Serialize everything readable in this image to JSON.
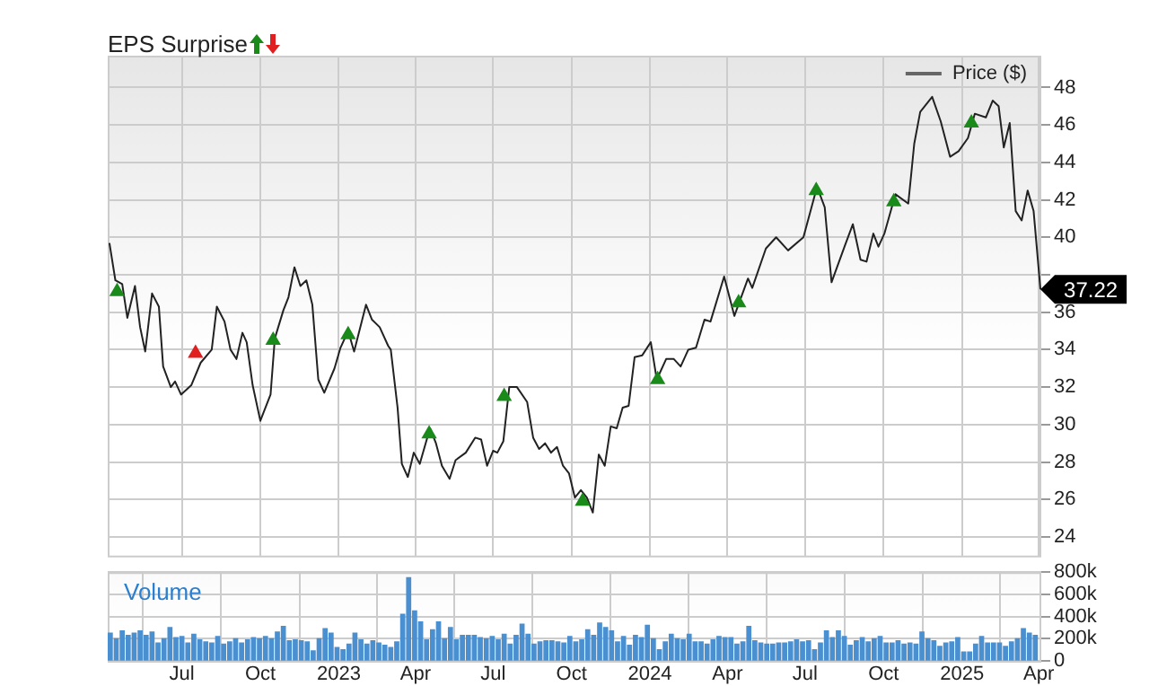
{
  "chart_data": [
    {
      "type": "line",
      "title": "EPS Surprise",
      "legend": "top right",
      "grid": true,
      "tick_labels": "y",
      "marker": "none",
      "xlim": [
        "2022-04-05",
        "2025-04-04"
      ],
      "xticks": [
        {
          "value": "2022-07-01",
          "label": null
        },
        {
          "value": "2022-10-01",
          "label": null
        },
        {
          "value": "2023-01-01",
          "label": null
        },
        {
          "value": "2023-04-01",
          "label": null
        },
        {
          "value": "2023-07-01",
          "label": null
        },
        {
          "value": "2023-10-01",
          "label": null
        },
        {
          "value": "2024-01-01",
          "label": null
        },
        {
          "value": "2024-04-01",
          "label": null
        },
        {
          "value": "2024-07-01",
          "label": null
        },
        {
          "value": "2024-10-01",
          "label": null
        },
        {
          "value": "2025-01-01",
          "label": null
        },
        {
          "value": "2025-04-01",
          "label": null
        }
      ],
      "ylim": [
        23,
        49.7
      ],
      "yticks": [
        24,
        26,
        28,
        30,
        32,
        34,
        36,
        {
          "value": 38,
          "label": null
        },
        40,
        42,
        44,
        46,
        48
      ],
      "annotations": [
        {
          "text": "37.22",
          "x": "2025-04-03",
          "y": 37.22
        }
      ],
      "series": [
        {
          "name": "Price ($)",
          "color": "#222222",
          "x": [
            "2022-04-07",
            "2022-04-14",
            "2022-04-22",
            "2022-04-28",
            "2022-05-07",
            "2022-05-13",
            "2022-05-19",
            "2022-05-27",
            "2022-06-04",
            "2022-06-09",
            "2022-06-18",
            "2022-06-23",
            "2022-06-30",
            "2022-07-12",
            "2022-07-23",
            "2022-08-05",
            "2022-08-11",
            "2022-08-20",
            "2022-08-27",
            "2022-09-03",
            "2022-09-10",
            "2022-09-15",
            "2022-09-22",
            "2022-10-01",
            "2022-10-13",
            "2022-10-18",
            "2022-10-28",
            "2022-11-03",
            "2022-11-10",
            "2022-11-17",
            "2022-11-24",
            "2022-12-01",
            "2022-12-08",
            "2022-12-15",
            "2022-12-27",
            "2023-01-03",
            "2023-01-12",
            "2023-01-19",
            "2023-02-02",
            "2023-02-09",
            "2023-02-18",
            "2023-02-28",
            "2023-03-03",
            "2023-03-11",
            "2023-03-16",
            "2023-03-23",
            "2023-03-30",
            "2023-04-06",
            "2023-04-18",
            "2023-04-25",
            "2023-05-02",
            "2023-05-11",
            "2023-05-18",
            "2023-05-30",
            "2023-06-10",
            "2023-06-17",
            "2023-06-24",
            "2023-07-01",
            "2023-07-06",
            "2023-07-13",
            "2023-07-20",
            "2023-07-29",
            "2023-08-10",
            "2023-08-17",
            "2023-08-24",
            "2023-08-31",
            "2023-09-07",
            "2023-09-14",
            "2023-09-21",
            "2023-09-28",
            "2023-10-05",
            "2023-10-12",
            "2023-10-19",
            "2023-10-26",
            "2023-11-02",
            "2023-11-09",
            "2023-11-16",
            "2023-11-23",
            "2023-11-30",
            "2023-12-07",
            "2023-12-14",
            "2023-12-23",
            "2024-01-02",
            "2024-01-09",
            "2024-01-20",
            "2024-01-29",
            "2024-02-06",
            "2024-02-15",
            "2024-02-24",
            "2024-03-05",
            "2024-03-12",
            "2024-03-28",
            "2024-04-09",
            "2024-04-25",
            "2024-04-30",
            "2024-05-16",
            "2024-05-28",
            "2024-06-11",
            "2024-06-29",
            "2024-07-15",
            "2024-07-24",
            "2024-08-01",
            "2024-08-17",
            "2024-08-26",
            "2024-09-04",
            "2024-09-11",
            "2024-09-19",
            "2024-09-25",
            "2024-10-02",
            "2024-10-15",
            "2024-10-30",
            "2024-11-06",
            "2024-11-13",
            "2024-11-27",
            "2024-12-07",
            "2024-12-18",
            "2024-12-28",
            "2025-01-08",
            "2025-01-16",
            "2025-01-29",
            "2025-02-06",
            "2025-02-13",
            "2025-02-19",
            "2025-02-26",
            "2025-03-05",
            "2025-03-12",
            "2025-03-19",
            "2025-03-26",
            "2025-04-03"
          ],
          "values": [
            39.7,
            37.7,
            37.5,
            35.7,
            37.4,
            35.2,
            33.9,
            37.0,
            36.3,
            33.1,
            32.0,
            32.3,
            31.6,
            32.1,
            33.3,
            34.0,
            36.3,
            35.5,
            34.0,
            33.5,
            34.9,
            34.4,
            32.1,
            30.2,
            31.6,
            34.6,
            36.1,
            36.8,
            38.4,
            37.4,
            37.7,
            36.4,
            32.4,
            31.7,
            33.0,
            34.1,
            35.0,
            33.9,
            36.4,
            35.6,
            35.2,
            34.2,
            34.0,
            30.9,
            27.9,
            27.2,
            28.5,
            27.9,
            29.8,
            29.0,
            27.8,
            27.1,
            28.1,
            28.5,
            29.3,
            29.2,
            27.8,
            28.6,
            28.5,
            29.1,
            32.0,
            32.0,
            31.2,
            29.3,
            28.7,
            29.0,
            28.5,
            28.8,
            27.8,
            27.4,
            26.1,
            26.5,
            26.1,
            25.3,
            28.4,
            27.8,
            29.9,
            29.8,
            30.9,
            31.0,
            33.6,
            33.7,
            34.4,
            32.4,
            33.5,
            33.5,
            33.1,
            34.0,
            34.1,
            35.6,
            35.5,
            37.9,
            35.8,
            37.8,
            37.3,
            39.4,
            40.0,
            39.3,
            40.0,
            42.7,
            41.6,
            37.6,
            39.6,
            40.7,
            38.8,
            38.7,
            40.2,
            39.5,
            40.2,
            42.3,
            41.8,
            45.0,
            46.7,
            47.5,
            46.2,
            44.3,
            44.6,
            45.3,
            46.6,
            46.4,
            47.3,
            47.0,
            44.8,
            46.1,
            41.4,
            40.9,
            42.5,
            41.4,
            37.22
          ]
        },
        {
          "type": "scatter",
          "marker": "triangle",
          "color": "#1a8a1a",
          "x": [
            "2022-04-16",
            "2022-10-16",
            "2023-01-12",
            "2023-04-17",
            "2023-07-14",
            "2023-10-14",
            "2024-01-10",
            "2024-04-14",
            "2024-07-14",
            "2024-10-13",
            "2025-01-12"
          ],
          "values": [
            37.1,
            34.5,
            34.8,
            29.5,
            31.5,
            25.9,
            32.4,
            36.5,
            42.5,
            41.9,
            46.1
          ]
        },
        {
          "type": "scatter",
          "marker": "triangle",
          "color": "#e02020",
          "x": [
            "2022-07-17"
          ],
          "values": [
            33.8
          ]
        }
      ]
    },
    {
      "type": "bar",
      "title": "Volume",
      "grid": true,
      "xlim": [
        "2022-04-05",
        "2025-04-04"
      ],
      "xticks": [
        {
          "value": "2022-07-01",
          "label": "Jul"
        },
        {
          "value": "2022-10-01",
          "label": "Oct"
        },
        {
          "value": "2023-01-01",
          "label": "2023"
        },
        {
          "value": "2023-04-01",
          "label": "Apr"
        },
        {
          "value": "2023-07-01",
          "label": "Jul"
        },
        {
          "value": "2023-10-01",
          "label": "Oct"
        },
        {
          "value": "2024-01-01",
          "label": "2024"
        },
        {
          "value": "2024-04-01",
          "label": "Apr"
        },
        {
          "value": "2024-07-01",
          "label": "Jul"
        },
        {
          "value": "2024-10-01",
          "label": "Oct"
        },
        {
          "value": "2025-01-01",
          "label": "2025"
        },
        {
          "value": "2025-04-01",
          "label": "Apr"
        }
      ],
      "ylim": [
        0,
        800000
      ],
      "yticks": [
        {
          "value": 0,
          "label": "0"
        },
        {
          "value": 200000,
          "label": "200k"
        },
        {
          "value": 400000,
          "label": "400k"
        },
        {
          "value": 600000,
          "label": "600k"
        },
        {
          "value": 800000,
          "label": "800k"
        }
      ],
      "series": [
        {
          "color": "#4a8fd0",
          "x": [
            "2022-04-08",
            "2022-04-15",
            "2022-04-22",
            "2022-04-29",
            "2022-05-06",
            "2022-05-13",
            "2022-05-20",
            "2022-05-27",
            "2022-06-03",
            "2022-06-10",
            "2022-06-17",
            "2022-06-24",
            "2022-07-01",
            "2022-07-08",
            "2022-07-15",
            "2022-07-22",
            "2022-07-29",
            "2022-08-05",
            "2022-08-12",
            "2022-08-19",
            "2022-08-26",
            "2022-09-02",
            "2022-09-09",
            "2022-09-16",
            "2022-09-23",
            "2022-09-30",
            "2022-10-07",
            "2022-10-14",
            "2022-10-21",
            "2022-10-28",
            "2022-11-04",
            "2022-11-11",
            "2022-11-18",
            "2022-11-25",
            "2022-12-02",
            "2022-12-09",
            "2022-12-16",
            "2022-12-23",
            "2022-12-30",
            "2023-01-06",
            "2023-01-13",
            "2023-01-20",
            "2023-01-27",
            "2023-02-03",
            "2023-02-10",
            "2023-02-17",
            "2023-02-24",
            "2023-03-03",
            "2023-03-10",
            "2023-03-17",
            "2023-03-24",
            "2023-03-31",
            "2023-04-07",
            "2023-04-14",
            "2023-04-21",
            "2023-04-28",
            "2023-05-05",
            "2023-05-12",
            "2023-05-19",
            "2023-05-26",
            "2023-06-02",
            "2023-06-09",
            "2023-06-16",
            "2023-06-23",
            "2023-06-30",
            "2023-07-07",
            "2023-07-14",
            "2023-07-21",
            "2023-07-28",
            "2023-08-04",
            "2023-08-11",
            "2023-08-18",
            "2023-08-25",
            "2023-09-01",
            "2023-09-08",
            "2023-09-15",
            "2023-09-22",
            "2023-09-29",
            "2023-10-06",
            "2023-10-13",
            "2023-10-20",
            "2023-10-27",
            "2023-11-03",
            "2023-11-10",
            "2023-11-17",
            "2023-11-24",
            "2023-12-01",
            "2023-12-08",
            "2023-12-15",
            "2023-12-22",
            "2023-12-29",
            "2024-01-05",
            "2024-01-12",
            "2024-01-19",
            "2024-01-26",
            "2024-02-02",
            "2024-02-09",
            "2024-02-16",
            "2024-02-23",
            "2024-03-01",
            "2024-03-08",
            "2024-03-15",
            "2024-03-22",
            "2024-03-29",
            "2024-04-05",
            "2024-04-12",
            "2024-04-19",
            "2024-04-26",
            "2024-05-03",
            "2024-05-10",
            "2024-05-17",
            "2024-05-24",
            "2024-05-31",
            "2024-06-07",
            "2024-06-14",
            "2024-06-21",
            "2024-06-28",
            "2024-07-05",
            "2024-07-12",
            "2024-07-19",
            "2024-07-26",
            "2024-08-02",
            "2024-08-09",
            "2024-08-16",
            "2024-08-23",
            "2024-08-30",
            "2024-09-06",
            "2024-09-13",
            "2024-09-20",
            "2024-09-27",
            "2024-10-04",
            "2024-10-11",
            "2024-10-18",
            "2024-10-25",
            "2024-11-01",
            "2024-11-08",
            "2024-11-15",
            "2024-11-22",
            "2024-11-29",
            "2024-12-06",
            "2024-12-13",
            "2024-12-20",
            "2024-12-27",
            "2025-01-03",
            "2025-01-10",
            "2025-01-17",
            "2025-01-24",
            "2025-01-31",
            "2025-02-07",
            "2025-02-14",
            "2025-02-21",
            "2025-02-28",
            "2025-03-07",
            "2025-03-14",
            "2025-03-21",
            "2025-03-28"
          ],
          "values": [
            250000,
            200000,
            270000,
            230000,
            250000,
            270000,
            230000,
            260000,
            160000,
            200000,
            300000,
            210000,
            220000,
            160000,
            240000,
            190000,
            170000,
            160000,
            220000,
            150000,
            170000,
            200000,
            160000,
            190000,
            210000,
            200000,
            220000,
            200000,
            260000,
            310000,
            180000,
            190000,
            180000,
            170000,
            90000,
            200000,
            290000,
            250000,
            120000,
            100000,
            150000,
            250000,
            190000,
            150000,
            180000,
            160000,
            140000,
            120000,
            170000,
            420000,
            750000,
            450000,
            350000,
            190000,
            280000,
            350000,
            200000,
            300000,
            190000,
            230000,
            230000,
            230000,
            210000,
            200000,
            220000,
            190000,
            240000,
            150000,
            230000,
            330000,
            240000,
            150000,
            170000,
            180000,
            180000,
            170000,
            160000,
            220000,
            170000,
            190000,
            280000,
            230000,
            340000,
            300000,
            270000,
            170000,
            220000,
            140000,
            230000,
            210000,
            320000,
            200000,
            100000,
            170000,
            240000,
            200000,
            190000,
            240000,
            170000,
            170000,
            150000,
            190000,
            220000,
            210000,
            210000,
            150000,
            170000,
            310000,
            180000,
            160000,
            150000,
            150000,
            160000,
            160000,
            170000,
            190000,
            170000,
            180000,
            100000,
            160000,
            270000,
            210000,
            270000,
            220000,
            140000,
            180000,
            210000,
            170000,
            200000,
            220000,
            160000,
            160000,
            180000,
            150000,
            160000,
            150000,
            260000,
            200000,
            180000,
            130000,
            160000,
            170000,
            210000,
            80000,
            80000,
            150000,
            220000,
            160000,
            160000,
            160000,
            130000,
            170000,
            200000,
            290000,
            250000,
            230000
          ]
        }
      ]
    }
  ]
}
